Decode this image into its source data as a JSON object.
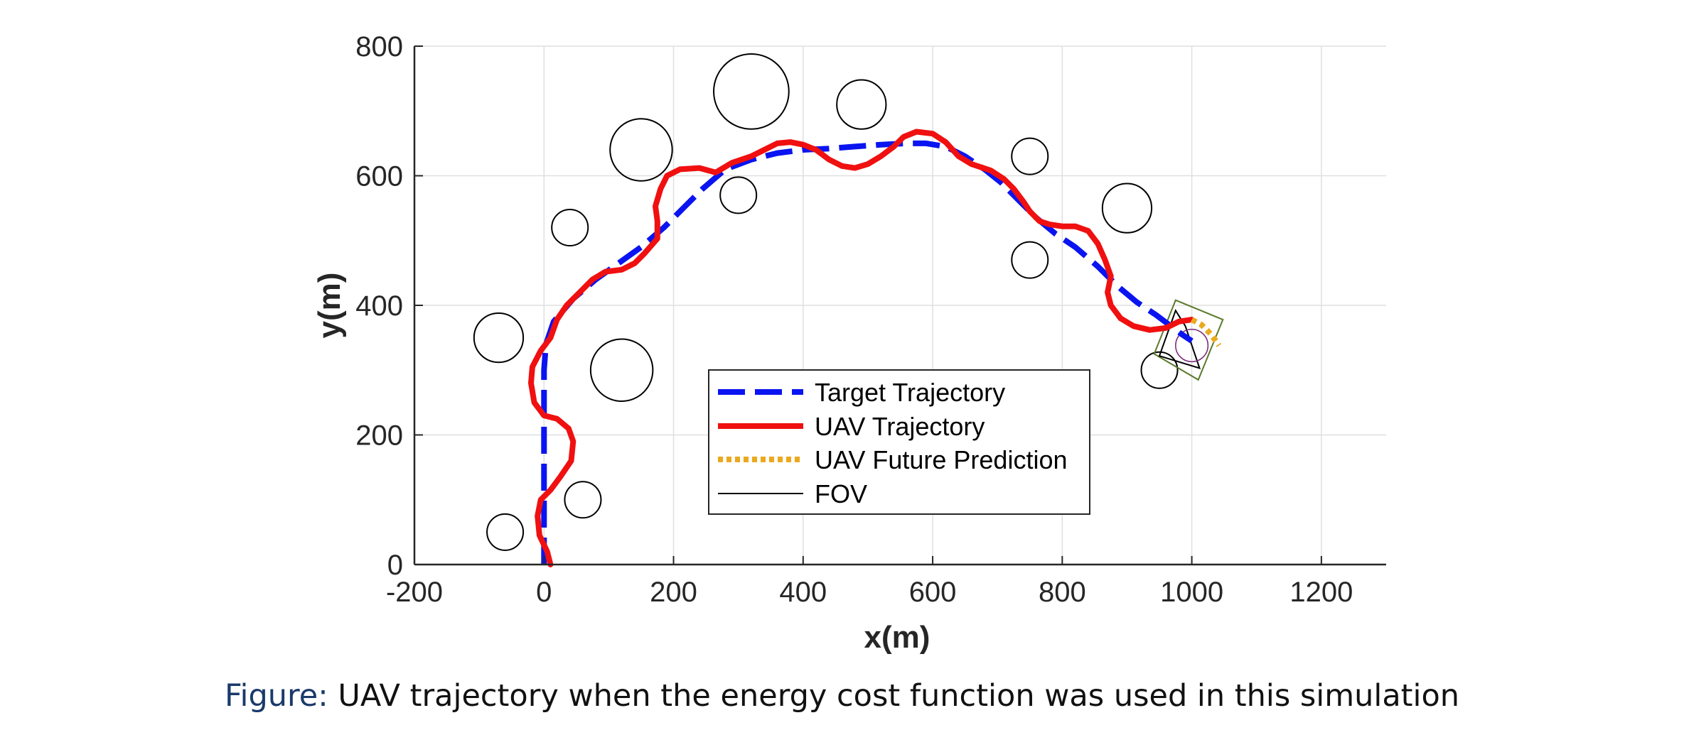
{
  "chart_data": {
    "type": "line",
    "xlabel": "x(m)",
    "ylabel": "y(m)",
    "xlim": [
      -200,
      1300
    ],
    "ylim": [
      0,
      800
    ],
    "xticks": [
      -200,
      0,
      200,
      400,
      600,
      800,
      1000,
      1200
    ],
    "yticks": [
      0,
      200,
      400,
      600,
      800
    ],
    "grid": true,
    "legend_position": "bottom-center",
    "colors": {
      "target": "#0a14f0",
      "uav": "#f01010",
      "prediction": "#eaa91e",
      "fov": "#000000",
      "fov_alt": "#5a7a2a",
      "fov_arc": "#7a2a7a"
    },
    "series": [
      {
        "name": "Target Trajectory",
        "style": "dashed",
        "points": [
          [
            0,
            0
          ],
          [
            0,
            60
          ],
          [
            0,
            120
          ],
          [
            0,
            180
          ],
          [
            0,
            240
          ],
          [
            0,
            300
          ],
          [
            3,
            340
          ],
          [
            15,
            375
          ],
          [
            45,
            410
          ],
          [
            80,
            440
          ],
          [
            115,
            465
          ],
          [
            150,
            490
          ],
          [
            185,
            520
          ],
          [
            215,
            550
          ],
          [
            245,
            580
          ],
          [
            280,
            610
          ],
          [
            320,
            625
          ],
          [
            360,
            635
          ],
          [
            400,
            640
          ],
          [
            440,
            642
          ],
          [
            480,
            645
          ],
          [
            520,
            648
          ],
          [
            560,
            650
          ],
          [
            590,
            650
          ],
          [
            620,
            645
          ],
          [
            650,
            630
          ],
          [
            680,
            610
          ],
          [
            705,
            590
          ],
          [
            730,
            565
          ],
          [
            760,
            535
          ],
          [
            790,
            510
          ],
          [
            820,
            490
          ],
          [
            855,
            460
          ],
          [
            885,
            430
          ],
          [
            915,
            405
          ],
          [
            945,
            385
          ],
          [
            965,
            370
          ],
          [
            985,
            355
          ],
          [
            1000,
            345
          ]
        ]
      },
      {
        "name": "UAV Trajectory",
        "style": "solid",
        "points": [
          [
            10,
            0
          ],
          [
            5,
            20
          ],
          [
            -7,
            45
          ],
          [
            -10,
            75
          ],
          [
            -5,
            100
          ],
          [
            10,
            115
          ],
          [
            25,
            135
          ],
          [
            42,
            160
          ],
          [
            45,
            190
          ],
          [
            38,
            210
          ],
          [
            20,
            225
          ],
          [
            0,
            230
          ],
          [
            -15,
            250
          ],
          [
            -20,
            280
          ],
          [
            -18,
            305
          ],
          [
            -5,
            330
          ],
          [
            10,
            350
          ],
          [
            20,
            378
          ],
          [
            35,
            400
          ],
          [
            55,
            420
          ],
          [
            75,
            440
          ],
          [
            95,
            452
          ],
          [
            120,
            455
          ],
          [
            140,
            465
          ],
          [
            155,
            480
          ],
          [
            175,
            503
          ],
          [
            175,
            530
          ],
          [
            172,
            553
          ],
          [
            180,
            580
          ],
          [
            190,
            600
          ],
          [
            210,
            610
          ],
          [
            240,
            612
          ],
          [
            265,
            605
          ],
          [
            290,
            620
          ],
          [
            320,
            630
          ],
          [
            340,
            640
          ],
          [
            360,
            650
          ],
          [
            380,
            652
          ],
          [
            400,
            648
          ],
          [
            420,
            640
          ],
          [
            440,
            625
          ],
          [
            460,
            615
          ],
          [
            480,
            612
          ],
          [
            500,
            618
          ],
          [
            520,
            630
          ],
          [
            540,
            645
          ],
          [
            555,
            660
          ],
          [
            575,
            668
          ],
          [
            600,
            665
          ],
          [
            620,
            652
          ],
          [
            640,
            630
          ],
          [
            660,
            618
          ],
          [
            690,
            608
          ],
          [
            710,
            595
          ],
          [
            725,
            580
          ],
          [
            740,
            560
          ],
          [
            750,
            545
          ],
          [
            765,
            530
          ],
          [
            780,
            525
          ],
          [
            800,
            522
          ],
          [
            820,
            522
          ],
          [
            840,
            515
          ],
          [
            855,
            495
          ],
          [
            866,
            470
          ],
          [
            875,
            445
          ],
          [
            870,
            420
          ],
          [
            875,
            400
          ],
          [
            890,
            380
          ],
          [
            910,
            368
          ],
          [
            935,
            362
          ],
          [
            960,
            365
          ],
          [
            980,
            375
          ],
          [
            1000,
            378
          ]
        ]
      },
      {
        "name": "UAV Future Prediction",
        "style": "dotted",
        "points": [
          [
            1000,
            378
          ],
          [
            1015,
            370
          ],
          [
            1030,
            355
          ],
          [
            1042,
            338
          ]
        ]
      },
      {
        "name": "FOV",
        "style": "thin",
        "quad_black": [
          [
            990,
            368
          ],
          [
            1012,
            303
          ],
          [
            950,
            322
          ],
          [
            975,
            392
          ]
        ],
        "quad_green": [
          [
            975,
            408
          ],
          [
            1048,
            378
          ],
          [
            1010,
            285
          ],
          [
            942,
            325
          ]
        ],
        "arc_center": [
          1000,
          338
        ],
        "arc_radius": 25
      }
    ],
    "obstacles": [
      {
        "x": -60,
        "y": 50,
        "r": 28
      },
      {
        "x": 60,
        "y": 100,
        "r": 28
      },
      {
        "x": -70,
        "y": 350,
        "r": 38
      },
      {
        "x": 120,
        "y": 300,
        "r": 48
      },
      {
        "x": 40,
        "y": 520,
        "r": 28
      },
      {
        "x": 150,
        "y": 640,
        "r": 48
      },
      {
        "x": 300,
        "y": 570,
        "r": 28
      },
      {
        "x": 320,
        "y": 730,
        "r": 58
      },
      {
        "x": 490,
        "y": 710,
        "r": 38
      },
      {
        "x": 750,
        "y": 630,
        "r": 28
      },
      {
        "x": 750,
        "y": 470,
        "r": 28
      },
      {
        "x": 900,
        "y": 550,
        "r": 38
      },
      {
        "x": 950,
        "y": 300,
        "r": 28
      }
    ]
  },
  "caption": {
    "label": "Figure:",
    "text": " UAV trajectory when the energy cost function was used in this simulation"
  }
}
